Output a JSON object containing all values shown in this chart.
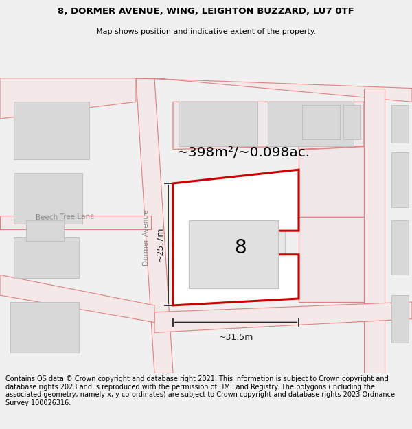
{
  "title": "8, DORMER AVENUE, WING, LEIGHTON BUZZARD, LU7 0TF",
  "subtitle": "Map shows position and indicative extent of the property.",
  "footer": "Contains OS data © Crown copyright and database right 2021. This information is subject to Crown copyright and database rights 2023 and is reproduced with the permission of HM Land Registry. The polygons (including the associated geometry, namely x, y co-ordinates) are subject to Crown copyright and database rights 2023 Ordnance Survey 100026316.",
  "area_text": "~398m²/~0.098ac.",
  "plot_number": "8",
  "dim_width": "~31.5m",
  "dim_height": "~25.7m",
  "road_label_dormer": "Dormer Avenue",
  "road_label_beech": "Beech Tree Lane",
  "title_fontsize": 9.5,
  "subtitle_fontsize": 8,
  "footer_fontsize": 7,
  "map_bg": "#f7f7f7",
  "header_bg": "#f0f0f0",
  "road_fill": "#f5e8e8",
  "road_edge": "#e8a0a0",
  "road_line": "#e08080",
  "bld_fill": "#d8d8d8",
  "bld_edge": "#c0c0c0",
  "plot_fill": "#ffffff",
  "plot_edge": "#cc0000",
  "plot_edge_lw": 2.2,
  "neighbor_edge": "#e08080",
  "neighbor_fill": "#f0e8e8",
  "dim_color": "#222222",
  "label_color": "#888888",
  "note_color": "#111111"
}
